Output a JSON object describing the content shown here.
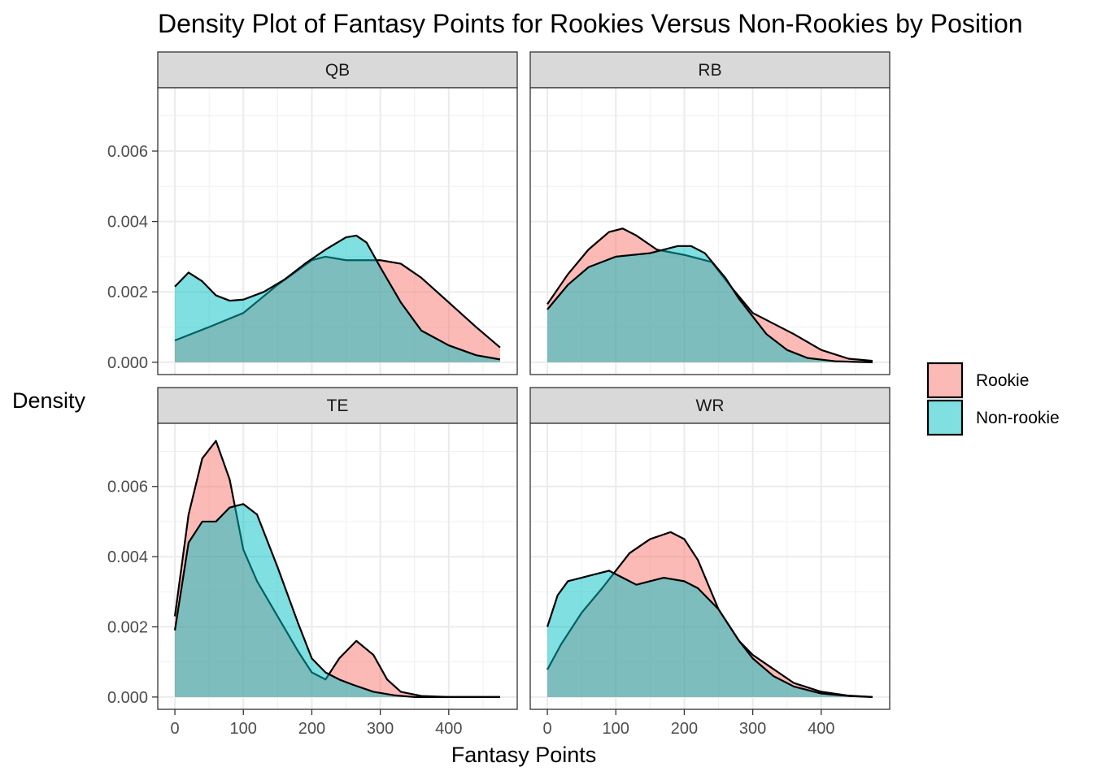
{
  "chart_data": {
    "type": "area",
    "title": "Density Plot of Fantasy Points for Rookies Versus Non-Rookies by Position",
    "xlabel": "Fantasy Points",
    "ylabel": "Density",
    "xlim": [
      -25,
      500
    ],
    "ylim": [
      -0.00035,
      0.0078
    ],
    "x_ticks": [
      0,
      100,
      200,
      300,
      400
    ],
    "y_ticks": [
      0.0,
      0.002,
      0.004,
      0.006
    ],
    "y_tick_labels": [
      "0.000",
      "0.002",
      "0.004",
      "0.006"
    ],
    "grid": true,
    "facets": [
      "QB",
      "RB",
      "TE",
      "WR"
    ],
    "legend": {
      "position": "right",
      "entries": [
        {
          "name": "Rookie",
          "color": "#F8766D"
        },
        {
          "name": "Non-rookie",
          "color": "#00BFC4"
        }
      ]
    },
    "panels": [
      {
        "facet": "QB",
        "series": [
          {
            "name": "Rookie",
            "x": [
              0,
              50,
              100,
              150,
              200,
              220,
              250,
              280,
              300,
              330,
              360,
              400,
              440,
              475
            ],
            "y": [
              0.00062,
              0.001,
              0.0014,
              0.0022,
              0.0029,
              0.003,
              0.0029,
              0.0029,
              0.0029,
              0.0028,
              0.0024,
              0.0017,
              0.001,
              0.00042
            ]
          },
          {
            "name": "Non-rookie",
            "x": [
              0,
              20,
              40,
              60,
              80,
              100,
              130,
              160,
              190,
              220,
              250,
              265,
              280,
              300,
              330,
              360,
              400,
              440,
              475
            ],
            "y": [
              0.00215,
              0.00255,
              0.0023,
              0.0019,
              0.00175,
              0.00178,
              0.002,
              0.00235,
              0.0028,
              0.0032,
              0.00355,
              0.0036,
              0.0034,
              0.0027,
              0.0017,
              0.0009,
              0.00048,
              0.0002,
              8e-05
            ]
          }
        ]
      },
      {
        "facet": "RB",
        "series": [
          {
            "name": "Rookie",
            "x": [
              0,
              30,
              60,
              90,
              110,
              130,
              160,
              200,
              240,
              270,
              300,
              330,
              360,
              400,
              440,
              475
            ],
            "y": [
              0.00165,
              0.0025,
              0.0032,
              0.0037,
              0.0038,
              0.0036,
              0.0032,
              0.00305,
              0.00285,
              0.0021,
              0.0014,
              0.0011,
              0.0008,
              0.00035,
              0.0001,
              4e-05
            ]
          },
          {
            "name": "Non-rookie",
            "x": [
              0,
              30,
              60,
              100,
              150,
              190,
              210,
              230,
              260,
              280,
              300,
              320,
              350,
              380,
              420,
              450,
              475
            ],
            "y": [
              0.0015,
              0.0022,
              0.0027,
              0.003,
              0.0031,
              0.0033,
              0.0033,
              0.0031,
              0.0024,
              0.0018,
              0.0013,
              0.0008,
              0.00035,
              0.00012,
              3e-05,
              1e-05,
              0.0
            ]
          }
        ]
      },
      {
        "facet": "TE",
        "series": [
          {
            "name": "Rookie",
            "x": [
              0,
              20,
              40,
              60,
              80,
              100,
              120,
              150,
              180,
              200,
              220,
              240,
              265,
              290,
              310,
              330,
              360,
              400,
              475
            ],
            "y": [
              0.0023,
              0.0052,
              0.0068,
              0.0073,
              0.0062,
              0.0042,
              0.0033,
              0.0023,
              0.0013,
              0.0007,
              0.0005,
              0.0011,
              0.0016,
              0.0012,
              0.0005,
              0.00015,
              3e-05,
              0.0,
              0.0
            ]
          },
          {
            "name": "Non-rookie",
            "x": [
              0,
              20,
              40,
              60,
              80,
              100,
              120,
              150,
              180,
              200,
              220,
              240,
              260,
              290,
              320,
              350,
              400,
              475
            ],
            "y": [
              0.0019,
              0.0044,
              0.005,
              0.005,
              0.0054,
              0.0055,
              0.0052,
              0.0037,
              0.0021,
              0.0011,
              0.0007,
              0.0005,
              0.00035,
              0.00015,
              5e-05,
              0.0,
              0.0,
              0.0
            ]
          }
        ]
      },
      {
        "facet": "WR",
        "series": [
          {
            "name": "Rookie",
            "x": [
              0,
              20,
              50,
              80,
              100,
              120,
              150,
              180,
              200,
              220,
              250,
              280,
              300,
              330,
              360,
              400,
              440,
              475
            ],
            "y": [
              0.00078,
              0.0015,
              0.0024,
              0.0031,
              0.0036,
              0.0041,
              0.0045,
              0.0047,
              0.0045,
              0.0039,
              0.0025,
              0.0016,
              0.0012,
              0.0008,
              0.0004,
              0.00015,
              4e-05,
              0.0
            ]
          },
          {
            "name": "Non-rookie",
            "x": [
              0,
              15,
              30,
              50,
              70,
              90,
              110,
              130,
              150,
              170,
              200,
              220,
              250,
              280,
              300,
              330,
              360,
              400,
              440,
              475
            ],
            "y": [
              0.002,
              0.0029,
              0.0033,
              0.0034,
              0.0035,
              0.0036,
              0.0034,
              0.0032,
              0.0033,
              0.0034,
              0.0033,
              0.0031,
              0.0025,
              0.0016,
              0.0011,
              0.0006,
              0.0003,
              0.0001,
              3e-05,
              0.0
            ]
          }
        ]
      }
    ]
  }
}
